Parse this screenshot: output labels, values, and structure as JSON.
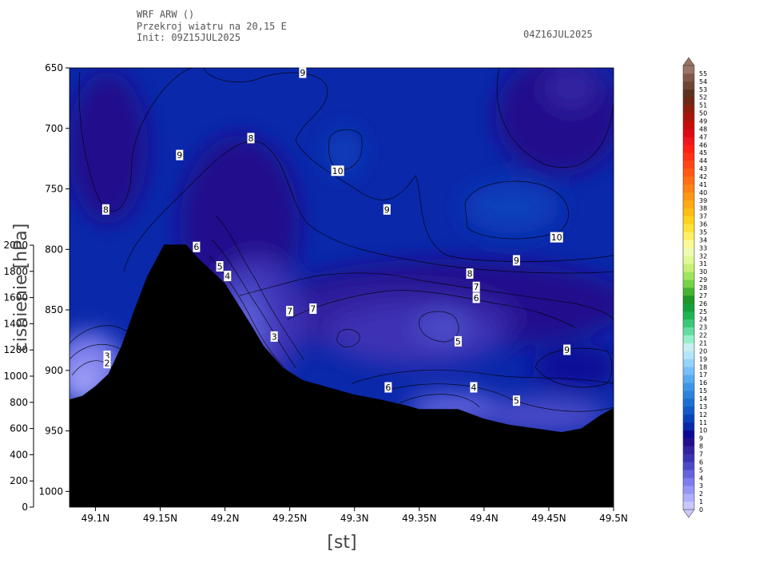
{
  "header": {
    "line1": "WRF ARW ()",
    "line2": "Przekroj wiatru na 20,15 E",
    "line3": "Init: 09Z15JUL2025",
    "valid": "04Z16JUL2025"
  },
  "chart_data": {
    "type": "contour",
    "xlabel": "[st]",
    "ylabel": "cisnienie [hPa]",
    "x_range": [
      49.08,
      49.5
    ],
    "x_ticks": [
      "49.1N",
      "49.15N",
      "49.2N",
      "49.25N",
      "49.3N",
      "49.35N",
      "49.4N",
      "49.45N",
      "49.5N"
    ],
    "x_tick_values": [
      49.1,
      49.15,
      49.2,
      49.25,
      49.3,
      49.35,
      49.4,
      49.45,
      49.5
    ],
    "y_range": [
      650,
      1013
    ],
    "y_ticks": [
      650,
      700,
      750,
      800,
      850,
      900,
      950,
      1000
    ],
    "height_ticks": [
      0,
      200,
      400,
      600,
      800,
      1000,
      1200,
      1400,
      1600,
      1800,
      2000
    ],
    "colorbar": {
      "levels": [
        0,
        1,
        2,
        3,
        4,
        5,
        6,
        7,
        8,
        9,
        10,
        11,
        12,
        13,
        14,
        15,
        16,
        17,
        18,
        19,
        20,
        21,
        22,
        23,
        24,
        25,
        26,
        27,
        28,
        29,
        30,
        31,
        32,
        33,
        34,
        35,
        36,
        37,
        38,
        39,
        40,
        41,
        42,
        43,
        44,
        45,
        46,
        47,
        48,
        49,
        50,
        51,
        52,
        53,
        54,
        55
      ],
      "colors": [
        "#c8c8ff",
        "#afafff",
        "#9696f5",
        "#7d7deb",
        "#6464dc",
        "#4b4bc8",
        "#3c32b4",
        "#3223a0",
        "#230f8c",
        "#0a0a96",
        "#0a28aa",
        "#0a41bb",
        "#1459c8",
        "#1e6ed2",
        "#2d82dc",
        "#3c96e6",
        "#5aaaf0",
        "#78befa",
        "#96d2fa",
        "#b4e6fa",
        "#c8f0f0",
        "#96f0c8",
        "#64dca0",
        "#3cc878",
        "#1eb450",
        "#14a03c",
        "#1e9628",
        "#46b432",
        "#78d246",
        "#a0e65a",
        "#c8f078",
        "#e1fa96",
        "#f0fab4",
        "#fafa96",
        "#fff064",
        "#ffe13c",
        "#ffd21e",
        "#ffbe14",
        "#ffaa14",
        "#ff9614",
        "#ff8214",
        "#ff6e14",
        "#ff5a14",
        "#ff4614",
        "#ff3214",
        "#ff1e14",
        "#f0141e",
        "#dc0a14",
        "#c80a0a",
        "#aa140a",
        "#8c1e0a",
        "#6e2814",
        "#5a321e",
        "#6e4632",
        "#82584a",
        "#9a7464"
      ],
      "labels": [
        "0",
        "1",
        "2",
        "3",
        "4",
        "5",
        "6",
        "7",
        "8",
        "9",
        "10",
        "11",
        "12",
        "13",
        "14",
        "15",
        "16",
        "17",
        "18",
        "19",
        "20",
        "21",
        "22",
        "23",
        "24",
        "25",
        "26",
        "27",
        "28",
        "29",
        "30",
        "31",
        "32",
        "33",
        "34",
        "35",
        "36",
        "37",
        "38",
        "39",
        "40",
        "41",
        "42",
        "43",
        "44",
        "45",
        "46",
        "47",
        "48",
        "49",
        "50",
        "51",
        "52",
        "53",
        "54",
        "55"
      ]
    },
    "terrain": [
      {
        "x": 49.08,
        "p": 924
      },
      {
        "x": 49.09,
        "p": 921
      },
      {
        "x": 49.1,
        "p": 913
      },
      {
        "x": 49.11,
        "p": 903
      },
      {
        "x": 49.12,
        "p": 880
      },
      {
        "x": 49.13,
        "p": 850
      },
      {
        "x": 49.14,
        "p": 822
      },
      {
        "x": 49.153,
        "p": 796
      },
      {
        "x": 49.17,
        "p": 796
      },
      {
        "x": 49.18,
        "p": 808
      },
      {
        "x": 49.19,
        "p": 818
      },
      {
        "x": 49.2,
        "p": 828
      },
      {
        "x": 49.21,
        "p": 845
      },
      {
        "x": 49.22,
        "p": 862
      },
      {
        "x": 49.23,
        "p": 880
      },
      {
        "x": 49.245,
        "p": 898
      },
      {
        "x": 49.26,
        "p": 908
      },
      {
        "x": 49.28,
        "p": 914
      },
      {
        "x": 49.3,
        "p": 920
      },
      {
        "x": 49.32,
        "p": 924
      },
      {
        "x": 49.34,
        "p": 929
      },
      {
        "x": 49.35,
        "p": 932
      },
      {
        "x": 49.38,
        "p": 932
      },
      {
        "x": 49.4,
        "p": 940
      },
      {
        "x": 49.42,
        "p": 945
      },
      {
        "x": 49.44,
        "p": 948
      },
      {
        "x": 49.46,
        "p": 951
      },
      {
        "x": 49.475,
        "p": 948
      },
      {
        "x": 49.49,
        "p": 937
      },
      {
        "x": 49.5,
        "p": 931
      }
    ],
    "contour_labels": [
      {
        "text": "9",
        "x": 49.26,
        "p": 654
      },
      {
        "text": "8",
        "x": 49.22,
        "p": 708
      },
      {
        "text": "9",
        "x": 49.165,
        "p": 722
      },
      {
        "text": "10",
        "x": 49.287,
        "p": 735
      },
      {
        "text": "8",
        "x": 49.108,
        "p": 767
      },
      {
        "text": "9",
        "x": 49.325,
        "p": 767
      },
      {
        "text": "10",
        "x": 49.456,
        "p": 790
      },
      {
        "text": "9",
        "x": 49.425,
        "p": 809
      },
      {
        "text": "6",
        "x": 49.178,
        "p": 798
      },
      {
        "text": "5",
        "x": 49.196,
        "p": 814
      },
      {
        "text": "4",
        "x": 49.202,
        "p": 822
      },
      {
        "text": "8",
        "x": 49.389,
        "p": 820
      },
      {
        "text": "7",
        "x": 49.394,
        "p": 831
      },
      {
        "text": "6",
        "x": 49.394,
        "p": 840
      },
      {
        "text": "7",
        "x": 49.25,
        "p": 851
      },
      {
        "text": "7",
        "x": 49.268,
        "p": 849
      },
      {
        "text": "5",
        "x": 49.38,
        "p": 876
      },
      {
        "text": "3",
        "x": 49.238,
        "p": 872
      },
      {
        "text": "3",
        "x": 49.109,
        "p": 888
      },
      {
        "text": "2",
        "x": 49.109,
        "p": 894
      },
      {
        "text": "9",
        "x": 49.464,
        "p": 883
      },
      {
        "text": "6",
        "x": 49.326,
        "p": 914
      },
      {
        "text": "4",
        "x": 49.392,
        "p": 914
      },
      {
        "text": "5",
        "x": 49.425,
        "p": 925
      }
    ]
  }
}
